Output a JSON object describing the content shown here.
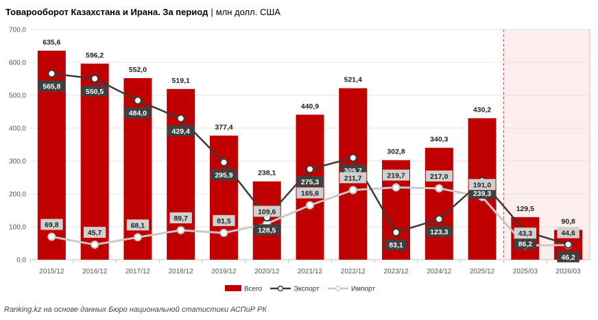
{
  "title": {
    "main": "Товарооборот Казахстана и Ирана. За период",
    "separator": "|",
    "unit": "млн долл. США"
  },
  "source": "Ranking.kz на основе данных Бюро национальной статистики АСПиР РК",
  "colors": {
    "total_bar": "#c00000",
    "export_line": "#3a3a3a",
    "import_line": "#c8c8c8",
    "highlight_bg": "#fdeeee",
    "highlight_border": "#c0504d"
  },
  "chart_data": {
    "type": "bar",
    "categories": [
      "2015/12",
      "2016/12",
      "2017/12",
      "2018/12",
      "2019/12",
      "2020/12",
      "2021/12",
      "2022/12",
      "2023/12",
      "2024/12",
      "2025/12",
      "2025/03",
      "2026/03"
    ],
    "ylim": [
      0,
      700
    ],
    "yticks": [
      "0,0",
      "100,0",
      "200,0",
      "300,0",
      "400,0",
      "500,0",
      "600,0",
      "700,0"
    ],
    "grid": true,
    "legend_position": "bottom",
    "highlighted_categories": [
      "2025/03",
      "2026/03"
    ],
    "series": [
      {
        "name": "Всего",
        "type": "bar",
        "values": [
          635.6,
          596.2,
          552.0,
          519.1,
          377.4,
          238.1,
          440.9,
          521.4,
          302.8,
          340.3,
          430.2,
          129.5,
          90.8
        ],
        "labels": [
          "635,6",
          "596,2",
          "552,0",
          "519,1",
          "377,4",
          "238,1",
          "440,9",
          "521,4",
          "302,8",
          "340,3",
          "430,2",
          "129,5",
          "90,8"
        ]
      },
      {
        "name": "Экспорт",
        "type": "line",
        "values": [
          565.8,
          550.5,
          484.0,
          429.4,
          295.9,
          128.5,
          275.3,
          309.7,
          83.1,
          123.3,
          239.3,
          86.2,
          46.2
        ],
        "labels": [
          "565,8",
          "550,5",
          "484,0",
          "429,4",
          "295,9",
          "128,5",
          "275,3",
          "309,7",
          "83,1",
          "123,3",
          "239,3",
          "86,2",
          "46,2"
        ]
      },
      {
        "name": "Импорт",
        "type": "line",
        "values": [
          69.8,
          45.7,
          68.1,
          89.7,
          81.5,
          109.6,
          165.6,
          211.7,
          219.7,
          217.0,
          191.0,
          43.3,
          44.6
        ],
        "labels": [
          "69,8",
          "45,7",
          "68,1",
          "89,7",
          "81,5",
          "109,6",
          "165,6",
          "211,7",
          "219,7",
          "217,0",
          "191,0",
          "43,3",
          "44,6"
        ]
      }
    ]
  }
}
